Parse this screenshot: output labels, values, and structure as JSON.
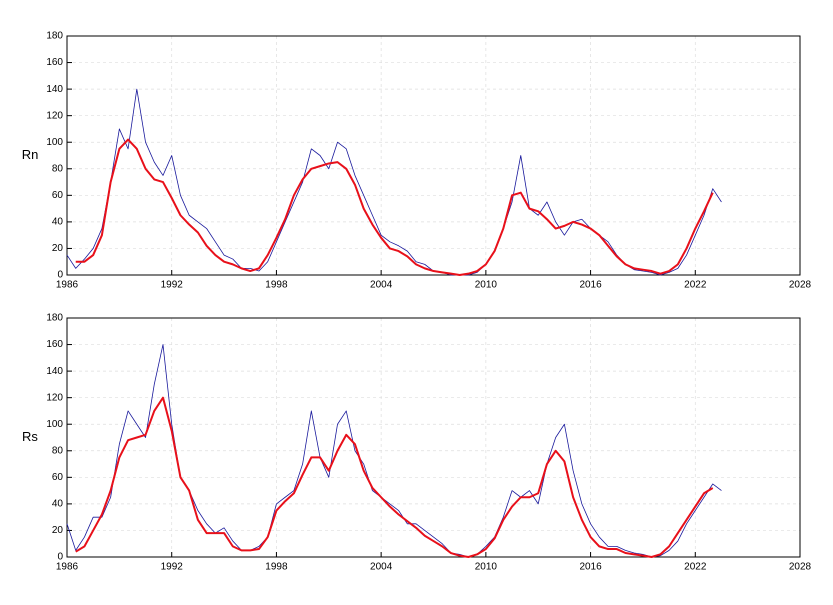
{
  "chart_data": [
    {
      "type": "line",
      "ylabel": "Rn",
      "xlim": [
        1986,
        2028
      ],
      "xticks": [
        1986,
        1992,
        1998,
        2004,
        2010,
        2016,
        2022,
        2028
      ],
      "ylim": [
        0,
        180
      ],
      "yticks": [
        0,
        20,
        40,
        60,
        80,
        100,
        120,
        140,
        160,
        180
      ],
      "grid": true,
      "x": [
        1986,
        1986.5,
        1987,
        1987.5,
        1988,
        1988.5,
        1989,
        1989.5,
        1990,
        1990.5,
        1991,
        1991.5,
        1992,
        1992.5,
        1993,
        1993.5,
        1994,
        1994.5,
        1995,
        1995.5,
        1996,
        1996.5,
        1997,
        1997.5,
        1998,
        1998.5,
        1999,
        1999.5,
        2000,
        2000.5,
        2001,
        2001.5,
        2002,
        2002.5,
        2003,
        2003.5,
        2004,
        2004.5,
        2005,
        2005.5,
        2006,
        2006.5,
        2007,
        2007.5,
        2008,
        2008.5,
        2009,
        2009.5,
        2010,
        2010.5,
        2011,
        2011.5,
        2012,
        2012.5,
        2013,
        2013.5,
        2014,
        2014.5,
        2015,
        2015.5,
        2016,
        2016.5,
        2017,
        2017.5,
        2018,
        2018.5,
        2019,
        2019.5,
        2020,
        2020.5,
        2021,
        2021.5,
        2022,
        2022.5,
        2023,
        2023.5
      ],
      "series": [
        {
          "color": "#1a1a9c",
          "width": 0.8,
          "values": [
            15,
            5,
            12,
            20,
            35,
            70,
            110,
            95,
            140,
            100,
            85,
            75,
            90,
            60,
            45,
            40,
            35,
            25,
            15,
            12,
            5,
            5,
            3,
            10,
            25,
            40,
            55,
            70,
            95,
            90,
            80,
            100,
            95,
            75,
            60,
            45,
            30,
            25,
            22,
            18,
            10,
            8,
            3,
            2,
            0,
            0,
            0,
            2,
            8,
            18,
            35,
            55,
            90,
            50,
            45,
            55,
            40,
            30,
            40,
            42,
            35,
            30,
            25,
            15,
            8,
            4,
            3,
            2,
            0,
            2,
            5,
            15,
            30,
            45,
            65,
            55
          ]
        },
        {
          "color": "#e8101a",
          "width": 2,
          "values": [
            null,
            10,
            10,
            15,
            30,
            70,
            95,
            102,
            95,
            80,
            72,
            70,
            58,
            45,
            38,
            32,
            22,
            15,
            10,
            8,
            5,
            3,
            5,
            15,
            28,
            42,
            60,
            72,
            80,
            82,
            84,
            85,
            80,
            68,
            50,
            38,
            28,
            20,
            18,
            14,
            8,
            5,
            3,
            2,
            1,
            0,
            1,
            3,
            8,
            18,
            35,
            60,
            62,
            50,
            48,
            42,
            35,
            37,
            40,
            38,
            35,
            30,
            22,
            14,
            8,
            5,
            4,
            3,
            1,
            3,
            8,
            20,
            35,
            48,
            62,
            null
          ]
        }
      ]
    },
    {
      "type": "line",
      "ylabel": "Rs",
      "xlim": [
        1986,
        2028
      ],
      "xticks": [
        1986,
        1992,
        1998,
        2004,
        2010,
        2016,
        2022,
        2028
      ],
      "ylim": [
        0,
        180
      ],
      "yticks": [
        0,
        20,
        40,
        60,
        80,
        100,
        120,
        140,
        160,
        180
      ],
      "grid": true,
      "x": [
        1986,
        1986.5,
        1987,
        1987.5,
        1988,
        1988.5,
        1989,
        1989.5,
        1990,
        1990.5,
        1991,
        1991.5,
        1992,
        1992.5,
        1993,
        1993.5,
        1994,
        1994.5,
        1995,
        1995.5,
        1996,
        1996.5,
        1997,
        1997.5,
        1998,
        1998.5,
        1999,
        1999.5,
        2000,
        2000.5,
        2001,
        2001.5,
        2002,
        2002.5,
        2003,
        2003.5,
        2004,
        2004.5,
        2005,
        2005.5,
        2006,
        2006.5,
        2007,
        2007.5,
        2008,
        2008.5,
        2009,
        2009.5,
        2010,
        2010.5,
        2011,
        2011.5,
        2012,
        2012.5,
        2013,
        2013.5,
        2014,
        2014.5,
        2015,
        2015.5,
        2016,
        2016.5,
        2017,
        2017.5,
        2018,
        2018.5,
        2019,
        2019.5,
        2020,
        2020.5,
        2021,
        2021.5,
        2022,
        2022.5,
        2023,
        2023.5
      ],
      "series": [
        {
          "color": "#1a1a9c",
          "width": 0.8,
          "values": [
            25,
            5,
            15,
            30,
            30,
            45,
            85,
            110,
            100,
            90,
            130,
            160,
            100,
            60,
            50,
            35,
            25,
            18,
            22,
            12,
            5,
            5,
            8,
            15,
            40,
            45,
            50,
            70,
            110,
            75,
            60,
            100,
            110,
            80,
            70,
            50,
            45,
            40,
            35,
            25,
            25,
            20,
            15,
            10,
            3,
            2,
            0,
            2,
            8,
            15,
            30,
            50,
            45,
            50,
            40,
            70,
            90,
            100,
            65,
            40,
            25,
            15,
            8,
            8,
            5,
            3,
            2,
            0,
            1,
            5,
            12,
            25,
            35,
            45,
            55,
            50
          ]
        },
        {
          "color": "#e8101a",
          "width": 2,
          "values": [
            null,
            4,
            8,
            20,
            32,
            50,
            75,
            88,
            90,
            92,
            110,
            120,
            95,
            60,
            50,
            28,
            18,
            18,
            18,
            8,
            5,
            5,
            6,
            15,
            35,
            42,
            48,
            62,
            75,
            75,
            65,
            80,
            92,
            85,
            65,
            52,
            45,
            38,
            32,
            27,
            22,
            16,
            12,
            8,
            3,
            1,
            0,
            2,
            6,
            14,
            28,
            38,
            45,
            45,
            48,
            70,
            80,
            72,
            45,
            28,
            15,
            8,
            6,
            6,
            3,
            2,
            1,
            0,
            2,
            8,
            18,
            28,
            38,
            48,
            52,
            null
          ]
        }
      ]
    }
  ]
}
